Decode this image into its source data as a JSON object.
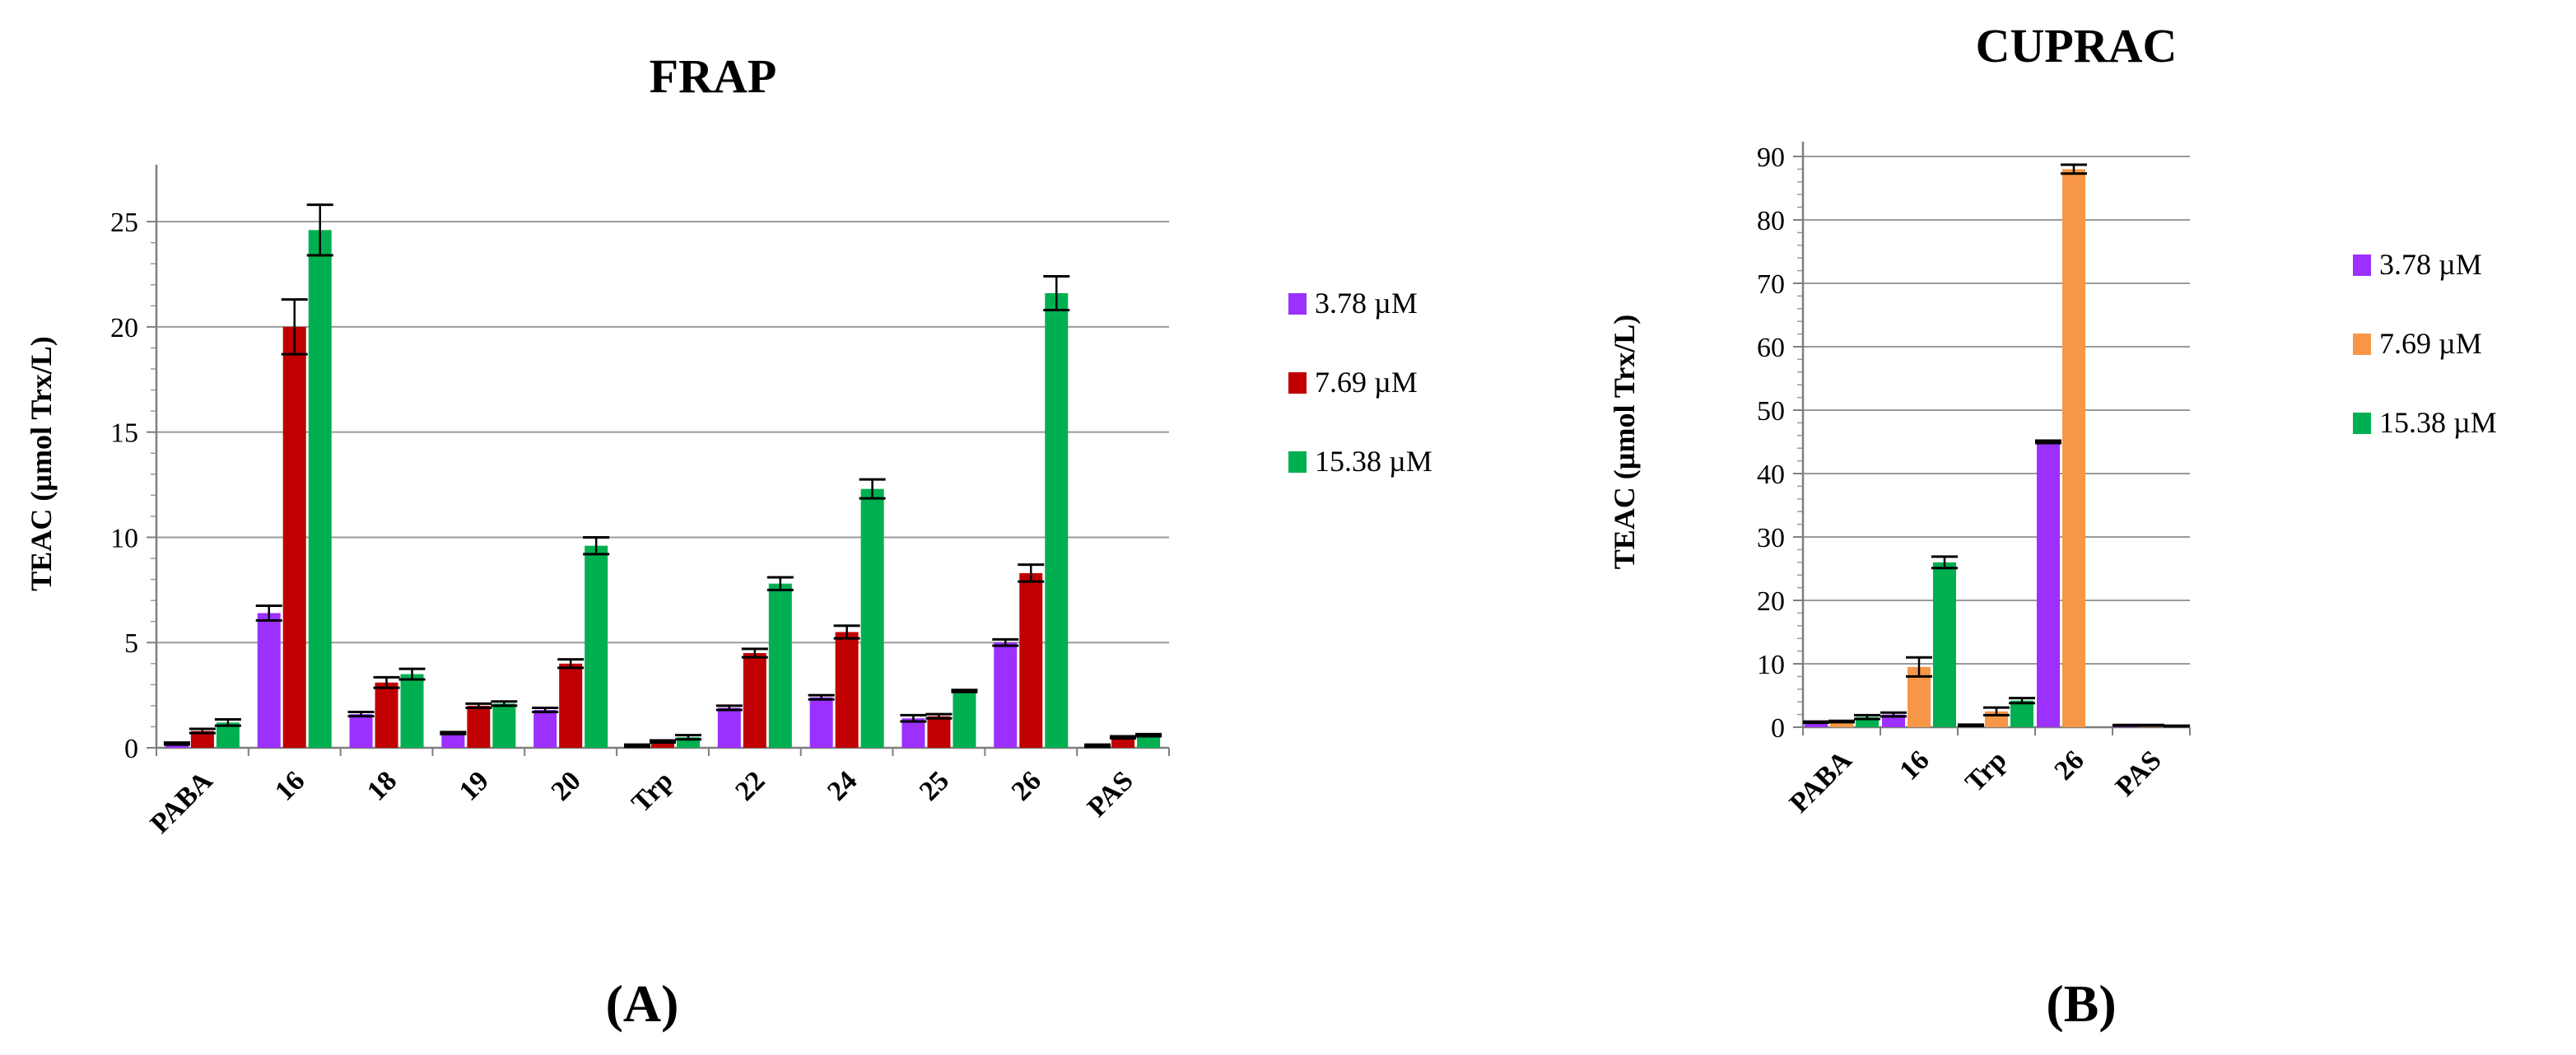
{
  "chart_data": [
    {
      "panel_label": "(A)",
      "type": "bar",
      "title": "FRAP",
      "ylabel": "TEAC (µmol Trx/L)",
      "xlabel": "",
      "ylim": [
        0,
        27
      ],
      "yticks": [
        0,
        5,
        10,
        15,
        20,
        25
      ],
      "grid": true,
      "legend_position": "right",
      "categories": [
        "PABA",
        "16",
        "18",
        "19",
        "20",
        "Trp",
        "22",
        "24",
        "25",
        "26",
        "PAS"
      ],
      "series": [
        {
          "name": "3.78 µM",
          "color": "#9b30ff",
          "values": [
            0.2,
            6.4,
            1.6,
            0.7,
            1.8,
            0.1,
            1.9,
            2.4,
            1.4,
            5.0,
            0.1
          ],
          "errors": [
            0.05,
            0.35,
            0.1,
            0.05,
            0.1,
            0.05,
            0.1,
            0.1,
            0.15,
            0.15,
            0.05
          ]
        },
        {
          "name": "7.69 µM",
          "color": "#c00000",
          "values": [
            0.8,
            20.0,
            3.1,
            2.0,
            4.0,
            0.3,
            4.5,
            5.5,
            1.5,
            8.3,
            0.5
          ],
          "errors": [
            0.1,
            1.3,
            0.25,
            0.1,
            0.2,
            0.05,
            0.2,
            0.3,
            0.1,
            0.4,
            0.05
          ]
        },
        {
          "name": "15.38 µM",
          "color": "#00b050",
          "values": [
            1.2,
            24.6,
            3.5,
            2.1,
            9.6,
            0.5,
            7.8,
            12.3,
            2.7,
            21.6,
            0.6
          ],
          "errors": [
            0.15,
            1.2,
            0.25,
            0.1,
            0.4,
            0.1,
            0.3,
            0.45,
            0.05,
            0.8,
            0.05
          ]
        }
      ]
    },
    {
      "panel_label": "(B)",
      "type": "bar",
      "title": "CUPRAC",
      "ylabel": "TEAC (µmol Trx/L)",
      "xlabel": "",
      "ylim": [
        0,
        90
      ],
      "yticks": [
        0,
        10,
        20,
        30,
        40,
        50,
        60,
        70,
        80,
        90
      ],
      "grid": true,
      "legend_position": "right",
      "categories": [
        "PABA",
        "16",
        "Trp",
        "26",
        "PAS"
      ],
      "series": [
        {
          "name": "3.78 µM",
          "color": "#9b30ff",
          "values": [
            0.8,
            2.0,
            0.3,
            45.0,
            0.3
          ],
          "errors": [
            0.1,
            0.3,
            0.1,
            0.2,
            0.05
          ]
        },
        {
          "name": "7.69 µM",
          "color": "#f79646",
          "values": [
            0.9,
            9.5,
            2.5,
            88.0,
            0.3
          ],
          "errors": [
            0.1,
            1.5,
            0.6,
            0.7,
            0.05
          ]
        },
        {
          "name": "15.38 µM",
          "color": "#00b050",
          "values": [
            1.6,
            26.0,
            4.2,
            0,
            0.2
          ],
          "errors": [
            0.3,
            0.9,
            0.4,
            0,
            0.05
          ]
        }
      ]
    }
  ]
}
